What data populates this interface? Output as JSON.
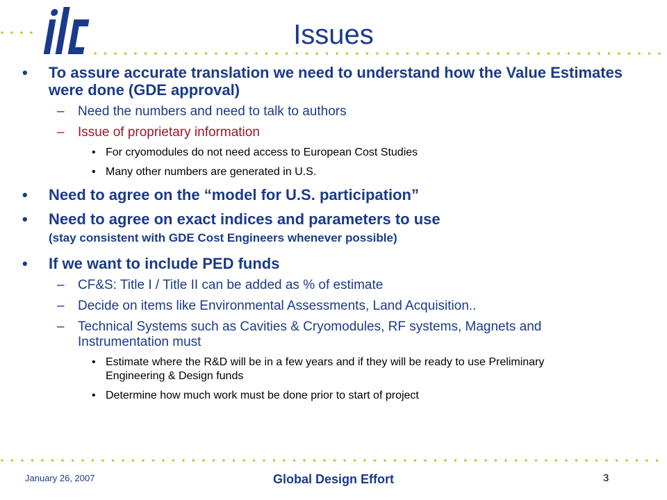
{
  "slide": {
    "title": "Issues",
    "bullets": {
      "b1": "To assure accurate translation we need to understand how the Value Estimates were done (GDE approval)",
      "b1_s1": "Need the numbers and need to talk to authors",
      "b1_s2": "Issue of proprietary information",
      "b1_s2_d1": "For cryomodules do not need access to European Cost Studies",
      "b1_s2_d2": "Many other numbers are generated in U.S.",
      "b2": "Need to agree on the “model for U.S. participation”",
      "b3": "Need to agree on exact indices and parameters to use",
      "b3_note": "(stay consistent with GDE Cost Engineers whenever possible)",
      "b4": "If we want to include PED funds",
      "b4_s1": "CF&S: Title I / Title II can be added as % of estimate",
      "b4_s2": "Decide on items like Environmental Assessments, Land Acquisition..",
      "b4_s3": "Technical Systems such as Cavities & Cryomodules, RF systems, Magnets and Instrumentation must",
      "b4_s3_d1": "Estimate where the R&D will be in a few years and if they will be ready to use Preliminary Engineering & Design funds",
      "b4_s3_d2": "Determine how much work must be done prior to start of project"
    }
  },
  "footer": {
    "date": "January 26, 2007",
    "center": "Global Design Effort",
    "page_number": "3"
  },
  "colors": {
    "title_blue": "#1a3a8a",
    "red_accent": "#a0142b",
    "dot_green": "#b5cc3a"
  },
  "logo_text": "ilc"
}
